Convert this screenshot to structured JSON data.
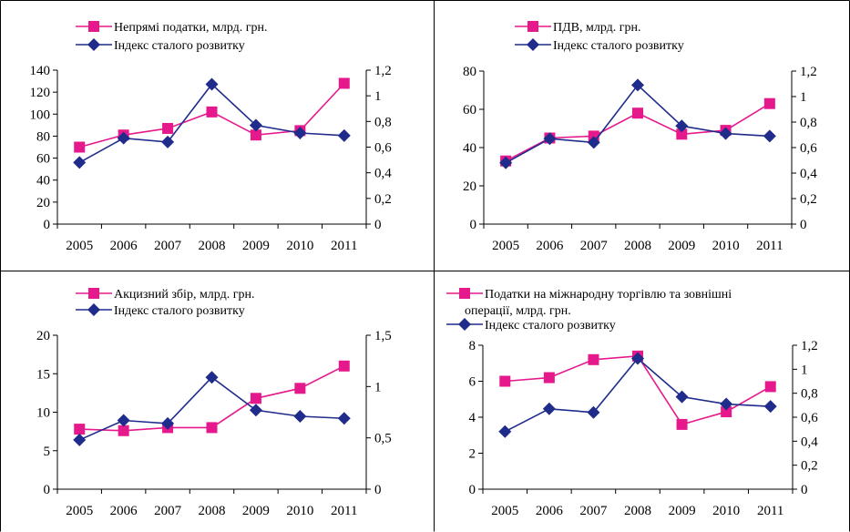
{
  "colors": {
    "tax": "#e6198c",
    "index": "#1f2c8c",
    "axis": "#000000",
    "border": "#000000"
  },
  "chart_data": [
    {
      "type": "line",
      "categories": [
        "2005",
        "2006",
        "2007",
        "2008",
        "2009",
        "2010",
        "2011"
      ],
      "series": [
        {
          "name": "Непрямі податки, млрд. грн.",
          "axis": "left",
          "marker": "square",
          "color": "#e6198c",
          "values": [
            70,
            81,
            87,
            102,
            81,
            85,
            128
          ]
        },
        {
          "name": "Індекс сталого розвитку",
          "axis": "right",
          "marker": "diamond",
          "color": "#1f2c8c",
          "values": [
            0.48,
            0.67,
            0.64,
            1.09,
            0.77,
            0.71,
            0.69
          ]
        }
      ],
      "legend": [
        "Непрямі податки, млрд. грн.",
        "Індекс сталого розвитку"
      ],
      "legend_position": "top",
      "y_left": {
        "min": 0,
        "max": 140,
        "ticks": [
          "0",
          "20",
          "40",
          "60",
          "80",
          "100",
          "120",
          "140"
        ]
      },
      "y_right": {
        "min": 0,
        "max": 1.2,
        "ticks": [
          "0",
          "0,2",
          "0,4",
          "0,6",
          "0,8",
          "1",
          "1,2"
        ]
      },
      "grid": false
    },
    {
      "type": "line",
      "categories": [
        "2005",
        "2006",
        "2007",
        "2008",
        "2009",
        "2010",
        "2011"
      ],
      "series": [
        {
          "name": "ПДВ, млрд. грн.",
          "axis": "left",
          "marker": "square",
          "color": "#e6198c",
          "values": [
            33,
            45,
            46,
            58,
            47,
            49,
            63
          ]
        },
        {
          "name": "Індекс сталого розвитку",
          "axis": "right",
          "marker": "diamond",
          "color": "#1f2c8c",
          "values": [
            0.48,
            0.67,
            0.64,
            1.09,
            0.77,
            0.71,
            0.69
          ]
        }
      ],
      "legend": [
        "ПДВ, млрд. грн.",
        "Індекс сталого розвитку"
      ],
      "legend_position": "top",
      "y_left": {
        "min": 0,
        "max": 80,
        "ticks": [
          "0",
          "20",
          "40",
          "60",
          "80"
        ]
      },
      "y_right": {
        "min": 0,
        "max": 1.2,
        "ticks": [
          "0",
          "0,2",
          "0,4",
          "0,6",
          "0,8",
          "1",
          "1,2"
        ]
      },
      "grid": false
    },
    {
      "type": "line",
      "categories": [
        "2005",
        "2006",
        "2007",
        "2008",
        "2009",
        "2010",
        "2011"
      ],
      "series": [
        {
          "name": "Акцизний збір, млрд. грн.",
          "axis": "left",
          "marker": "square",
          "color": "#e6198c",
          "values": [
            7.8,
            7.6,
            8.0,
            8.0,
            11.8,
            13.1,
            16.0
          ]
        },
        {
          "name": "Індекс сталого розвитку",
          "axis": "right",
          "marker": "diamond",
          "color": "#1f2c8c",
          "values": [
            0.48,
            0.67,
            0.64,
            1.09,
            0.77,
            0.71,
            0.69
          ]
        }
      ],
      "legend": [
        "Акцизний збір, млрд. грн.",
        "Індекс сталого розвитку"
      ],
      "legend_position": "top",
      "y_left": {
        "min": 0,
        "max": 20,
        "ticks": [
          "0",
          "5",
          "10",
          "15",
          "20"
        ]
      },
      "y_right": {
        "min": 0,
        "max": 1.5,
        "ticks": [
          "0",
          "0,5",
          "1",
          "1,5"
        ]
      },
      "grid": false
    },
    {
      "type": "line",
      "categories": [
        "2005",
        "2006",
        "2007",
        "2008",
        "2009",
        "2010",
        "2011"
      ],
      "series": [
        {
          "name": "Податки на міжнародну торгівлю та зовнішні операції, млрд. грн.",
          "axis": "left",
          "marker": "square",
          "color": "#e6198c",
          "values": [
            6.0,
            6.2,
            7.2,
            7.4,
            3.6,
            4.3,
            5.7
          ]
        },
        {
          "name": "Індекс сталого розвитку",
          "axis": "right",
          "marker": "diamond",
          "color": "#1f2c8c",
          "values": [
            0.48,
            0.67,
            0.64,
            1.09,
            0.77,
            0.71,
            0.69
          ]
        }
      ],
      "legend": [
        "Податки на міжнародну торгівлю та зовнішні операції, млрд. грн.",
        "Індекс сталого розвитку"
      ],
      "legend_position": "top",
      "y_left": {
        "min": 0,
        "max": 8,
        "ticks": [
          "0",
          "2",
          "4",
          "6",
          "8"
        ]
      },
      "y_right": {
        "min": 0,
        "max": 1.2,
        "ticks": [
          "0",
          "0,2",
          "0,4",
          "0,6",
          "0,8",
          "1",
          "1,2"
        ]
      },
      "grid": false
    }
  ]
}
